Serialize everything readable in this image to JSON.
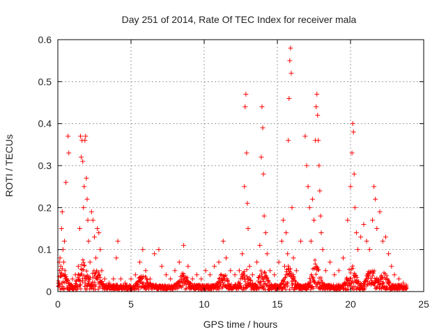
{
  "chart_data": {
    "type": "scatter",
    "title": "Day 251 of 2014, Rate Of TEC Index for receiver mala",
    "xlabel": "GPS time / hours",
    "ylabel": "ROTI / TECUs",
    "xlim": [
      0,
      25
    ],
    "ylim": [
      0,
      0.6
    ],
    "x_ticks": [
      0,
      5,
      10,
      15,
      20,
      25
    ],
    "x_tick_labels": [
      "0",
      "5",
      "10",
      "15",
      "20",
      "25"
    ],
    "y_ticks": [
      0,
      0.1,
      0.2,
      0.3,
      0.4,
      0.5,
      0.6
    ],
    "y_tick_labels": [
      "0",
      "0.1",
      "0.2",
      "0.3",
      "0.4",
      "0.5",
      "0.6"
    ],
    "grid": true,
    "marker": "plus",
    "series": [
      {
        "name": "ROTI",
        "color": "#ff0000",
        "points": [
          [
            0.05,
            0.02
          ],
          [
            0.1,
            0.07
          ],
          [
            0.15,
            0.08
          ],
          [
            0.2,
            0.06
          ],
          [
            0.25,
            0.15
          ],
          [
            0.3,
            0.19
          ],
          [
            0.35,
            0.1
          ],
          [
            0.4,
            0.07
          ],
          [
            0.45,
            0.12
          ],
          [
            0.5,
            0.04
          ],
          [
            0.55,
            0.26
          ],
          [
            0.6,
            0.03
          ],
          [
            0.7,
            0.37
          ],
          [
            0.75,
            0.33
          ],
          [
            0.8,
            0.02
          ],
          [
            1.0,
            0.03
          ],
          [
            1.2,
            0.04
          ],
          [
            1.4,
            0.06
          ],
          [
            1.5,
            0.15
          ],
          [
            1.55,
            0.37
          ],
          [
            1.6,
            0.32
          ],
          [
            1.65,
            0.36
          ],
          [
            1.7,
            0.31
          ],
          [
            1.75,
            0.2
          ],
          [
            1.8,
            0.25
          ],
          [
            1.85,
            0.36
          ],
          [
            1.9,
            0.37
          ],
          [
            1.95,
            0.27
          ],
          [
            2.0,
            0.22
          ],
          [
            2.05,
            0.17
          ],
          [
            2.1,
            0.12
          ],
          [
            2.2,
            0.07
          ],
          [
            2.3,
            0.19
          ],
          [
            2.4,
            0.17
          ],
          [
            2.5,
            0.13
          ],
          [
            2.6,
            0.08
          ],
          [
            2.7,
            0.15
          ],
          [
            2.8,
            0.14
          ],
          [
            2.9,
            0.1
          ],
          [
            3.0,
            0.05
          ],
          [
            3.2,
            0.03
          ],
          [
            3.5,
            0.02
          ],
          [
            3.8,
            0.03
          ],
          [
            4.0,
            0.08
          ],
          [
            4.1,
            0.12
          ],
          [
            4.3,
            0.03
          ],
          [
            4.6,
            0.02
          ],
          [
            5.0,
            0.03
          ],
          [
            5.3,
            0.04
          ],
          [
            5.6,
            0.07
          ],
          [
            5.8,
            0.1
          ],
          [
            6.0,
            0.05
          ],
          [
            6.3,
            0.03
          ],
          [
            6.6,
            0.09
          ],
          [
            6.9,
            0.1
          ],
          [
            7.1,
            0.06
          ],
          [
            7.4,
            0.04
          ],
          [
            7.7,
            0.03
          ],
          [
            8.0,
            0.05
          ],
          [
            8.3,
            0.07
          ],
          [
            8.6,
            0.11
          ],
          [
            8.9,
            0.06
          ],
          [
            9.2,
            0.03
          ],
          [
            9.5,
            0.04
          ],
          [
            9.8,
            0.03
          ],
          [
            10.1,
            0.05
          ],
          [
            10.4,
            0.04
          ],
          [
            10.7,
            0.06
          ],
          [
            11.0,
            0.07
          ],
          [
            11.3,
            0.12
          ],
          [
            11.5,
            0.08
          ],
          [
            11.8,
            0.05
          ],
          [
            12.1,
            0.04
          ],
          [
            12.4,
            0.05
          ],
          [
            12.6,
            0.09
          ],
          [
            12.75,
            0.25
          ],
          [
            12.8,
            0.44
          ],
          [
            12.85,
            0.47
          ],
          [
            12.9,
            0.33
          ],
          [
            12.95,
            0.21
          ],
          [
            13.0,
            0.15
          ],
          [
            13.1,
            0.06
          ],
          [
            13.3,
            0.04
          ],
          [
            13.6,
            0.07
          ],
          [
            13.8,
            0.11
          ],
          [
            13.9,
            0.32
          ],
          [
            13.95,
            0.44
          ],
          [
            14.0,
            0.39
          ],
          [
            14.05,
            0.28
          ],
          [
            14.1,
            0.18
          ],
          [
            14.2,
            0.14
          ],
          [
            14.3,
            0.09
          ],
          [
            14.5,
            0.05
          ],
          [
            14.8,
            0.04
          ],
          [
            15.1,
            0.07
          ],
          [
            15.3,
            0.12
          ],
          [
            15.4,
            0.17
          ],
          [
            15.5,
            0.06
          ],
          [
            15.6,
            0.14
          ],
          [
            15.7,
            0.09
          ],
          [
            15.75,
            0.36
          ],
          [
            15.8,
            0.46
          ],
          [
            15.85,
            0.55
          ],
          [
            15.9,
            0.58
          ],
          [
            15.95,
            0.52
          ],
          [
            16.0,
            0.2
          ],
          [
            16.1,
            0.08
          ],
          [
            16.3,
            0.05
          ],
          [
            16.6,
            0.12
          ],
          [
            16.9,
            0.37
          ],
          [
            17.0,
            0.3
          ],
          [
            17.1,
            0.25
          ],
          [
            17.2,
            0.2
          ],
          [
            17.3,
            0.12
          ],
          [
            17.4,
            0.22
          ],
          [
            17.5,
            0.17
          ],
          [
            17.6,
            0.36
          ],
          [
            17.65,
            0.44
          ],
          [
            17.7,
            0.47
          ],
          [
            17.75,
            0.42
          ],
          [
            17.8,
            0.36
          ],
          [
            17.85,
            0.3
          ],
          [
            17.9,
            0.24
          ],
          [
            17.95,
            0.18
          ],
          [
            18.0,
            0.14
          ],
          [
            18.1,
            0.1
          ],
          [
            18.3,
            0.05
          ],
          [
            18.6,
            0.07
          ],
          [
            18.9,
            0.04
          ],
          [
            19.2,
            0.05
          ],
          [
            19.5,
            0.08
          ],
          [
            19.8,
            0.17
          ],
          [
            20.0,
            0.25
          ],
          [
            20.1,
            0.33
          ],
          [
            20.15,
            0.4
          ],
          [
            20.2,
            0.38
          ],
          [
            20.25,
            0.28
          ],
          [
            20.3,
            0.2
          ],
          [
            20.4,
            0.14
          ],
          [
            20.5,
            0.1
          ],
          [
            20.7,
            0.13
          ],
          [
            20.9,
            0.16
          ],
          [
            21.1,
            0.12
          ],
          [
            21.3,
            0.1
          ],
          [
            21.5,
            0.17
          ],
          [
            21.6,
            0.25
          ],
          [
            21.7,
            0.22
          ],
          [
            21.8,
            0.15
          ],
          [
            22.0,
            0.19
          ],
          [
            22.2,
            0.12
          ],
          [
            22.4,
            0.13
          ],
          [
            22.6,
            0.09
          ],
          [
            22.8,
            0.06
          ],
          [
            23.0,
            0.04
          ],
          [
            23.3,
            0.03
          ],
          [
            23.6,
            0.02
          ],
          [
            23.8,
            0.01
          ]
        ]
      }
    ]
  }
}
